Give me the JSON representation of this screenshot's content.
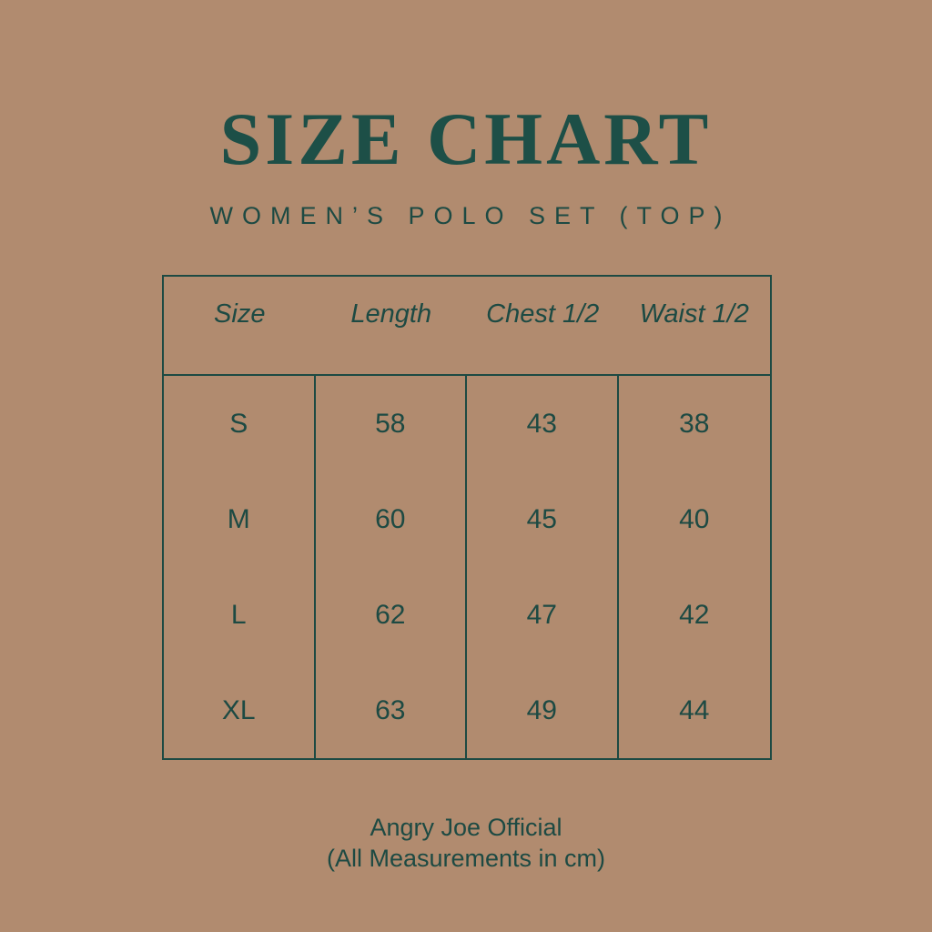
{
  "colors": {
    "background": "#b18b6f",
    "ink": "#1d4a43",
    "title_ink": "#1d4f47"
  },
  "header": {
    "title": "SIZE CHART",
    "subtitle": "WOMEN’S POLO SET (TOP)"
  },
  "table": {
    "columns": [
      "Size",
      "Length",
      "Chest 1/2",
      "Waist 1/2"
    ],
    "rows": [
      [
        "S",
        "58",
        "43",
        "38"
      ],
      [
        "M",
        "60",
        "45",
        "40"
      ],
      [
        "L",
        "62",
        "47",
        "42"
      ],
      [
        "XL",
        "63",
        "49",
        "44"
      ]
    ]
  },
  "footer": {
    "line1": "Angry Joe Official",
    "line2": "(All Measurements in cm)"
  }
}
